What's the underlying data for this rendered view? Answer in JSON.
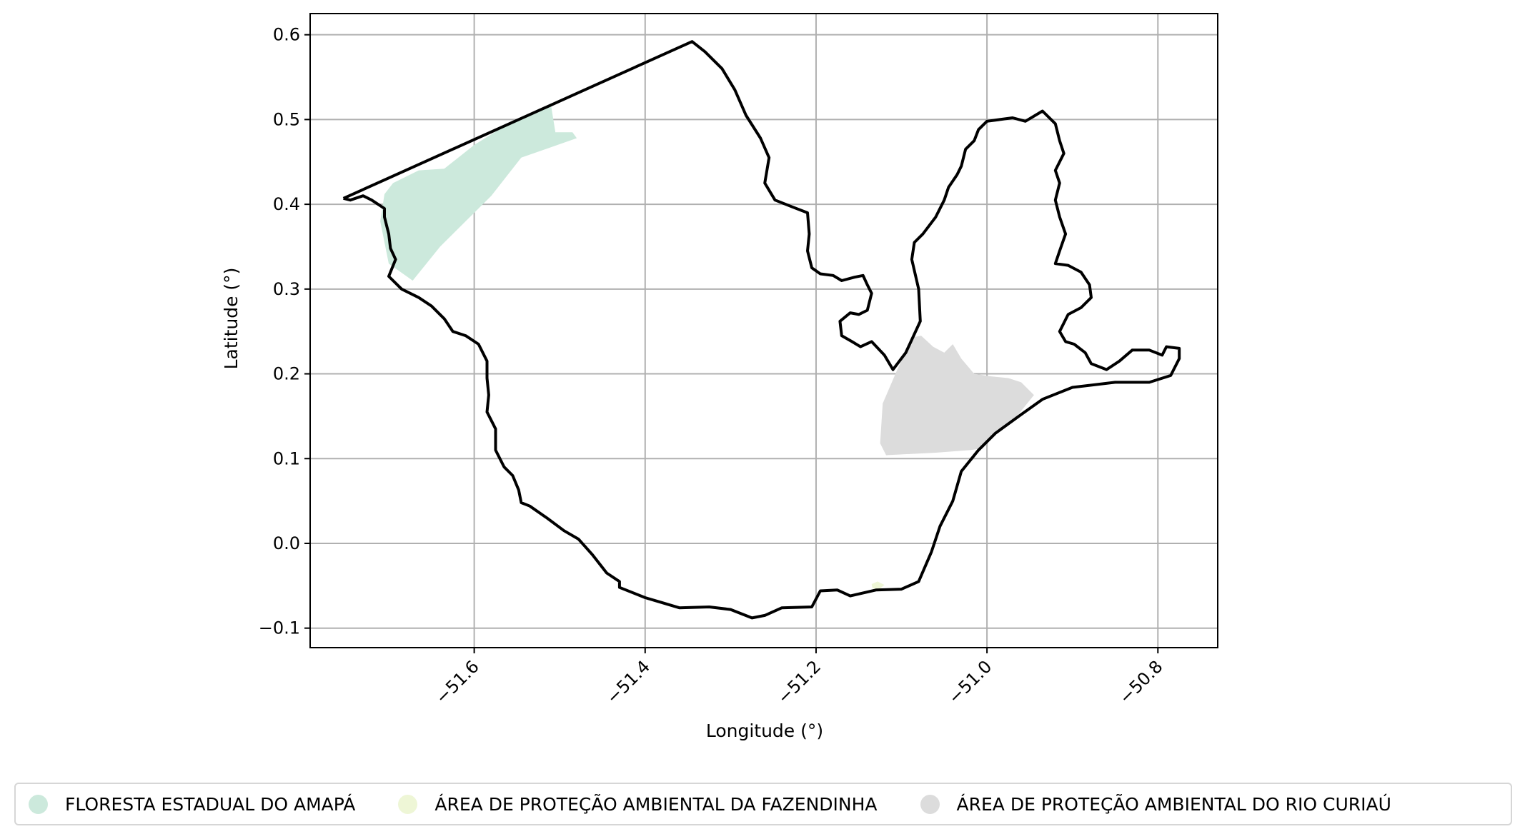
{
  "map": {
    "xlabel": "Longitude (°)",
    "ylabel": "Latitude (°)",
    "xlim": [
      -51.792,
      -50.73
    ],
    "ylim": [
      -0.123,
      0.625
    ],
    "x_ticks": [
      {
        "value": -51.6,
        "label": "−51.6"
      },
      {
        "value": -51.4,
        "label": "−51.4"
      },
      {
        "value": -51.2,
        "label": "−51.2"
      },
      {
        "value": -51.0,
        "label": "−51.0"
      },
      {
        "value": -50.8,
        "label": "−50.8"
      }
    ],
    "y_ticks": [
      {
        "value": 0.6,
        "label": "0.6"
      },
      {
        "value": 0.5,
        "label": "0.5"
      },
      {
        "value": 0.4,
        "label": "0.4"
      },
      {
        "value": 0.3,
        "label": "0.3"
      },
      {
        "value": 0.2,
        "label": "0.2"
      },
      {
        "value": 0.1,
        "label": "0.1"
      },
      {
        "value": 0.0,
        "label": "0.0"
      },
      {
        "value": -0.1,
        "label": "−0.1"
      }
    ],
    "grid": true,
    "boundary_color": "#000000",
    "boundary": [
      [
        -51.753,
        0.407
      ],
      [
        -51.345,
        0.592
      ],
      [
        -51.33,
        0.58
      ],
      [
        -51.31,
        0.56
      ],
      [
        -51.295,
        0.535
      ],
      [
        -51.282,
        0.505
      ],
      [
        -51.265,
        0.478
      ],
      [
        -51.255,
        0.455
      ],
      [
        -51.26,
        0.425
      ],
      [
        -51.248,
        0.405
      ],
      [
        -51.228,
        0.397
      ],
      [
        -51.21,
        0.39
      ],
      [
        -51.208,
        0.365
      ],
      [
        -51.21,
        0.345
      ],
      [
        -51.205,
        0.325
      ],
      [
        -51.195,
        0.318
      ],
      [
        -51.18,
        0.316
      ],
      [
        -51.17,
        0.31
      ],
      [
        -51.155,
        0.314
      ],
      [
        -51.145,
        0.316
      ],
      [
        -51.14,
        0.305
      ],
      [
        -51.135,
        0.295
      ],
      [
        -51.14,
        0.275
      ],
      [
        -51.15,
        0.27
      ],
      [
        -51.16,
        0.272
      ],
      [
        -51.172,
        0.262
      ],
      [
        -51.17,
        0.245
      ],
      [
        -51.158,
        0.238
      ],
      [
        -51.148,
        0.232
      ],
      [
        -51.135,
        0.238
      ],
      [
        -51.12,
        0.222
      ],
      [
        -51.11,
        0.205
      ],
      [
        -51.095,
        0.225
      ],
      [
        -51.078,
        0.262
      ],
      [
        -51.08,
        0.3
      ],
      [
        -51.088,
        0.335
      ],
      [
        -51.085,
        0.355
      ],
      [
        -51.075,
        0.365
      ],
      [
        -51.06,
        0.385
      ],
      [
        -51.05,
        0.405
      ],
      [
        -51.045,
        0.42
      ],
      [
        -51.035,
        0.435
      ],
      [
        -51.03,
        0.445
      ],
      [
        -51.025,
        0.465
      ],
      [
        -51.015,
        0.475
      ],
      [
        -51.01,
        0.488
      ],
      [
        -51.0,
        0.498
      ],
      [
        -50.985,
        0.5
      ],
      [
        -50.97,
        0.502
      ],
      [
        -50.955,
        0.498
      ],
      [
        -50.935,
        0.51
      ],
      [
        -50.92,
        0.495
      ],
      [
        -50.915,
        0.475
      ],
      [
        -50.91,
        0.46
      ],
      [
        -50.92,
        0.44
      ],
      [
        -50.915,
        0.425
      ],
      [
        -50.92,
        0.405
      ],
      [
        -50.915,
        0.385
      ],
      [
        -50.908,
        0.365
      ],
      [
        -50.915,
        0.345
      ],
      [
        -50.92,
        0.33
      ],
      [
        -50.905,
        0.328
      ],
      [
        -50.89,
        0.32
      ],
      [
        -50.88,
        0.305
      ],
      [
        -50.878,
        0.29
      ],
      [
        -50.89,
        0.278
      ],
      [
        -50.905,
        0.27
      ],
      [
        -50.915,
        0.25
      ],
      [
        -50.908,
        0.238
      ],
      [
        -50.898,
        0.235
      ],
      [
        -50.885,
        0.225
      ],
      [
        -50.878,
        0.212
      ],
      [
        -50.86,
        0.205
      ],
      [
        -50.845,
        0.215
      ],
      [
        -50.83,
        0.228
      ],
      [
        -50.81,
        0.228
      ],
      [
        -50.795,
        0.222
      ],
      [
        -50.79,
        0.232
      ],
      [
        -50.775,
        0.23
      ],
      [
        -50.775,
        0.218
      ],
      [
        -50.785,
        0.198
      ],
      [
        -50.81,
        0.19
      ],
      [
        -50.85,
        0.19
      ],
      [
        -50.9,
        0.184
      ],
      [
        -50.935,
        0.17
      ],
      [
        -50.96,
        0.152
      ],
      [
        -50.99,
        0.13
      ],
      [
        -51.01,
        0.11
      ],
      [
        -51.03,
        0.085
      ],
      [
        -51.04,
        0.05
      ],
      [
        -51.055,
        0.02
      ],
      [
        -51.065,
        -0.01
      ],
      [
        -51.08,
        -0.045
      ],
      [
        -51.1,
        -0.054
      ],
      [
        -51.13,
        -0.055
      ],
      [
        -51.16,
        -0.062
      ],
      [
        -51.175,
        -0.055
      ],
      [
        -51.195,
        -0.056
      ],
      [
        -51.205,
        -0.075
      ],
      [
        -51.24,
        -0.076
      ],
      [
        -51.26,
        -0.085
      ],
      [
        -51.275,
        -0.088
      ],
      [
        -51.3,
        -0.078
      ],
      [
        -51.325,
        -0.075
      ],
      [
        -51.36,
        -0.076
      ],
      [
        -51.38,
        -0.07
      ],
      [
        -51.4,
        -0.064
      ],
      [
        -51.43,
        -0.052
      ],
      [
        -51.43,
        -0.045
      ],
      [
        -51.445,
        -0.035
      ],
      [
        -51.462,
        -0.013
      ],
      [
        -51.478,
        0.005
      ],
      [
        -51.495,
        0.015
      ],
      [
        -51.515,
        0.03
      ],
      [
        -51.535,
        0.044
      ],
      [
        -51.545,
        0.048
      ],
      [
        -51.548,
        0.063
      ],
      [
        -51.555,
        0.08
      ],
      [
        -51.565,
        0.09
      ],
      [
        -51.575,
        0.11
      ],
      [
        -51.575,
        0.135
      ],
      [
        -51.58,
        0.145
      ],
      [
        -51.585,
        0.155
      ],
      [
        -51.583,
        0.175
      ],
      [
        -51.585,
        0.195
      ],
      [
        -51.585,
        0.215
      ],
      [
        -51.595,
        0.235
      ],
      [
        -51.61,
        0.245
      ],
      [
        -51.625,
        0.25
      ],
      [
        -51.635,
        0.265
      ],
      [
        -51.65,
        0.28
      ],
      [
        -51.665,
        0.29
      ],
      [
        -51.685,
        0.3
      ],
      [
        -51.7,
        0.315
      ],
      [
        -51.692,
        0.335
      ],
      [
        -51.698,
        0.348
      ],
      [
        -51.7,
        0.365
      ],
      [
        -51.705,
        0.385
      ],
      [
        -51.705,
        0.395
      ],
      [
        -51.72,
        0.405
      ],
      [
        -51.73,
        0.41
      ],
      [
        -51.745,
        0.405
      ],
      [
        -51.753,
        0.407
      ]
    ],
    "areas": [
      {
        "name": "FLORESTA ESTADUAL DO AMAPÁ",
        "color": "#cce9dc",
        "polygon": [
          [
            -51.705,
            0.412
          ],
          [
            -51.695,
            0.425
          ],
          [
            -51.665,
            0.44
          ],
          [
            -51.635,
            0.442
          ],
          [
            -51.6,
            0.47
          ],
          [
            -51.56,
            0.495
          ],
          [
            -51.51,
            0.516
          ],
          [
            -51.505,
            0.485
          ],
          [
            -51.485,
            0.485
          ],
          [
            -51.48,
            0.478
          ],
          [
            -51.545,
            0.455
          ],
          [
            -51.58,
            0.41
          ],
          [
            -51.61,
            0.38
          ],
          [
            -51.64,
            0.35
          ],
          [
            -51.672,
            0.31
          ],
          [
            -51.7,
            0.33
          ],
          [
            -51.71,
            0.38
          ]
        ]
      },
      {
        "name": "ÁREA DE PROTEÇÃO AMBIENTAL DA FAZENDINHA",
        "color": "#eef6d6",
        "polygon": [
          [
            -51.135,
            -0.048
          ],
          [
            -51.128,
            -0.045
          ],
          [
            -51.12,
            -0.049
          ],
          [
            -51.126,
            -0.054
          ],
          [
            -51.134,
            -0.053
          ]
        ]
      },
      {
        "name": "ÁREA DE PROTEÇÃO AMBIENTAL DO RIO CURIAÚ",
        "color": "#dcdcdc",
        "polygon": [
          [
            -51.118,
            0.104
          ],
          [
            -51.125,
            0.118
          ],
          [
            -51.122,
            0.165
          ],
          [
            -51.105,
            0.205
          ],
          [
            -51.087,
            0.243
          ],
          [
            -51.077,
            0.245
          ],
          [
            -51.063,
            0.232
          ],
          [
            -51.05,
            0.225
          ],
          [
            -51.04,
            0.235
          ],
          [
            -51.03,
            0.218
          ],
          [
            -51.015,
            0.2
          ],
          [
            -50.995,
            0.197
          ],
          [
            -50.975,
            0.195
          ],
          [
            -50.96,
            0.19
          ],
          [
            -50.95,
            0.18
          ],
          [
            -50.945,
            0.175
          ],
          [
            -50.965,
            0.15
          ],
          [
            -50.99,
            0.13
          ],
          [
            -51.005,
            0.112
          ],
          [
            -51.02,
            0.11
          ],
          [
            -51.06,
            0.107
          ]
        ]
      }
    ]
  },
  "legend": {
    "items": [
      {
        "label": "FLORESTA ESTADUAL DO AMAPÁ",
        "color": "#cce9dc"
      },
      {
        "label": "ÁREA DE PROTEÇÃO AMBIENTAL DA FAZENDINHA",
        "color": "#eef6d6"
      },
      {
        "label": "ÁREA DE PROTEÇÃO AMBIENTAL DO RIO CURIAÚ",
        "color": "#dcdcdc"
      }
    ]
  }
}
